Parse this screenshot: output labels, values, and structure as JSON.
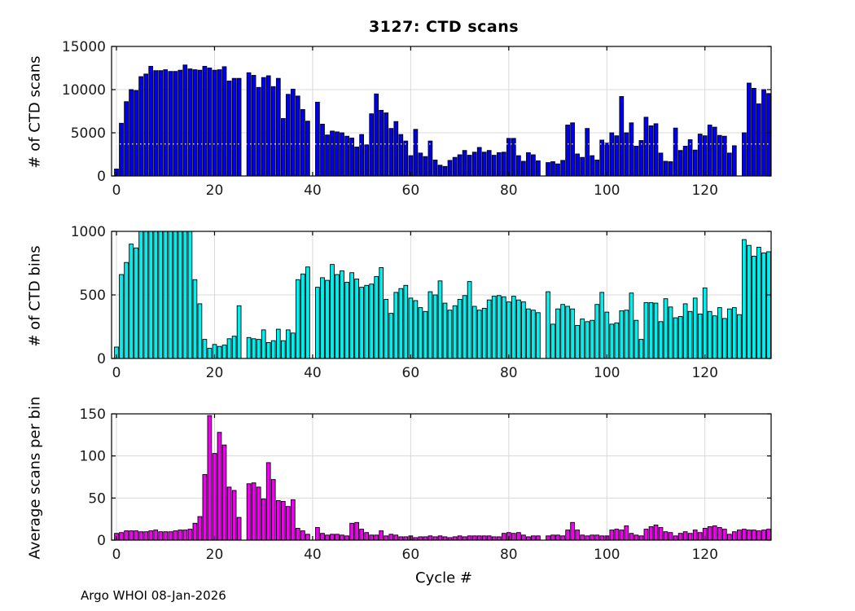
{
  "title": "3127: CTD scans",
  "xlabel": "Cycle #",
  "footer": "Argo WHOI 08-Jan-2026",
  "colors": {
    "scans_bar": "#0000ef",
    "bins_bar": "#00efef",
    "avg_bar": "#ef00ef",
    "bar_edge": "#000000",
    "grid": "#d8d8d8",
    "axis": "#000000",
    "dotted_overlay": "#ffffff",
    "background": "#ffffff"
  },
  "x_ticks": [
    0,
    20,
    40,
    60,
    80,
    100,
    120
  ],
  "xlim": [
    -1,
    133.5
  ],
  "chart_data": [
    {
      "type": "bar",
      "name": "ctd-scans",
      "title": "3127: CTD scans",
      "xlabel": "",
      "ylabel": "# of CTD scans",
      "ylim": [
        0,
        15000
      ],
      "yticks": [
        0,
        5000,
        10000,
        15000
      ],
      "grid": true,
      "dotted_line_y": 3700,
      "x": "cycle index 0-133",
      "values": [
        800,
        6100,
        8600,
        10000,
        9900,
        11500,
        11800,
        12700,
        12200,
        12200,
        12300,
        12100,
        12100,
        12250,
        12850,
        12400,
        12300,
        12250,
        12700,
        12500,
        12250,
        12300,
        12650,
        11000,
        11300,
        11300,
        0,
        11950,
        11650,
        10250,
        11400,
        11600,
        10350,
        11300,
        6650,
        9450,
        10050,
        9250,
        7700,
        6350,
        0,
        8550,
        6000,
        4750,
        5200,
        5100,
        5000,
        4600,
        4400,
        3350,
        4800,
        3600,
        7200,
        9500,
        7600,
        7300,
        5500,
        6300,
        4800,
        4050,
        2350,
        5400,
        2650,
        2250,
        4050,
        1850,
        1250,
        1100,
        1800,
        2150,
        2450,
        2950,
        2400,
        2750,
        3300,
        2750,
        2950,
        2400,
        2700,
        2750,
        4350,
        4350,
        2350,
        1700,
        2700,
        2450,
        1750,
        0,
        1550,
        1650,
        1400,
        1800,
        5900,
        6150,
        2550,
        2150,
        5500,
        2350,
        1850,
        4150,
        3800,
        5000,
        4650,
        9200,
        5000,
        6150,
        3450,
        4100,
        6800,
        5800,
        6050,
        2650,
        1700,
        1650,
        5550,
        2950,
        3450,
        4200,
        3000,
        4850,
        4650,
        5900,
        5650,
        4700,
        4600,
        2650,
        3500,
        0,
        5000,
        10750,
        10150,
        8350,
        10000,
        9550
      ]
    },
    {
      "type": "bar",
      "name": "ctd-bins",
      "xlabel": "",
      "ylabel": "# of CTD bins",
      "ylim": [
        0,
        1000
      ],
      "yticks": [
        0,
        500,
        1000
      ],
      "grid": true,
      "values": [
        90,
        660,
        755,
        900,
        870,
        1000,
        1000,
        1000,
        1000,
        1000,
        1000,
        1000,
        1000,
        1000,
        1000,
        1000,
        620,
        430,
        150,
        80,
        110,
        95,
        105,
        155,
        175,
        415,
        0,
        165,
        155,
        150,
        225,
        125,
        140,
        230,
        140,
        225,
        200,
        620,
        665,
        720,
        0,
        560,
        635,
        615,
        740,
        660,
        690,
        600,
        675,
        625,
        560,
        575,
        585,
        645,
        715,
        465,
        355,
        520,
        550,
        575,
        475,
        455,
        400,
        370,
        525,
        500,
        610,
        435,
        380,
        415,
        465,
        495,
        605,
        410,
        380,
        395,
        460,
        490,
        495,
        485,
        445,
        490,
        460,
        445,
        390,
        380,
        360,
        0,
        525,
        270,
        390,
        425,
        410,
        390,
        260,
        310,
        290,
        300,
        425,
        520,
        365,
        270,
        280,
        375,
        380,
        515,
        300,
        150,
        440,
        440,
        435,
        290,
        470,
        405,
        320,
        330,
        430,
        370,
        475,
        350,
        555,
        370,
        335,
        400,
        315,
        390,
        400,
        345,
        935,
        890,
        805,
        875,
        830,
        840
      ]
    },
    {
      "type": "bar",
      "name": "avg-scans-per-bin",
      "xlabel": "Cycle #",
      "ylabel": "Average scans per bin",
      "ylim": [
        0,
        150
      ],
      "yticks": [
        0,
        50,
        100,
        150
      ],
      "grid": true,
      "values": [
        8,
        9,
        11,
        11,
        11,
        10,
        10,
        11,
        12,
        10,
        10,
        10,
        11,
        12,
        12,
        13,
        20,
        28,
        78,
        148,
        103,
        128,
        113,
        63,
        59,
        27,
        0,
        67,
        68,
        63,
        49,
        92,
        72,
        47,
        46,
        40,
        48,
        14,
        11,
        7,
        0,
        15,
        8,
        6,
        7,
        7,
        6,
        5,
        20,
        21,
        13,
        9,
        6,
        6,
        11,
        5,
        7,
        6,
        4,
        4,
        5,
        3,
        4,
        4,
        5,
        4,
        5,
        4,
        3,
        4,
        5,
        4,
        5,
        5,
        5,
        5,
        5,
        4,
        4,
        8,
        9,
        8,
        9,
        6,
        4,
        5,
        5,
        0,
        5,
        6,
        6,
        5,
        12,
        21,
        12,
        6,
        5,
        6,
        6,
        5,
        5,
        12,
        13,
        12,
        17,
        8,
        6,
        5,
        13,
        16,
        18,
        15,
        10,
        9,
        5,
        8,
        10,
        8,
        12,
        9,
        14,
        16,
        17,
        15,
        13,
        7,
        10,
        12,
        13,
        12,
        12,
        11,
        12,
        13
      ]
    }
  ]
}
